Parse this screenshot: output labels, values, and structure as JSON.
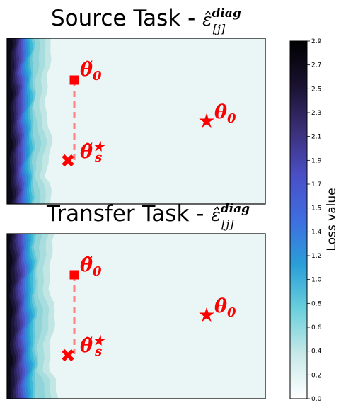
{
  "panels": [
    {
      "title_prefix": "Source Task - ",
      "title_symbol": "ε̂",
      "title_superscript": "diag",
      "title_subscript": "[j]",
      "markers": [
        {
          "symbol": "θ̃",
          "subscript": "0",
          "shape": "square"
        },
        {
          "symbol": "θ̃",
          "subscript": "s",
          "superscript": "★",
          "shape": "x"
        },
        {
          "symbol": "θ",
          "subscript": "0",
          "shape": "star"
        }
      ]
    },
    {
      "title_prefix": "Transfer Task - ",
      "title_symbol": "ε̂",
      "title_superscript": "diag",
      "title_subscript": "[j]",
      "markers": [
        {
          "symbol": "θ̃",
          "subscript": "0",
          "shape": "square"
        },
        {
          "symbol": "θ̃",
          "subscript": "s",
          "superscript": "★",
          "shape": "x"
        },
        {
          "symbol": "θ",
          "subscript": "0",
          "shape": "star"
        }
      ]
    }
  ],
  "colorbar": {
    "label": "Loss value",
    "min": 0.0,
    "max": 2.9,
    "ticks": [
      "0.0",
      "0.2",
      "0.4",
      "0.6",
      "0.8",
      "1.0",
      "1.2",
      "1.4",
      "1.5",
      "1.7",
      "1.9",
      "2.1",
      "2.3",
      "2.5",
      "2.7",
      "2.9"
    ],
    "colormap": [
      "#ffffff",
      "#c8e8e8",
      "#6ad0dc",
      "#2a9ed8",
      "#3f6ee0",
      "#4a4fc6",
      "#3b2f78",
      "#1a1230",
      "#000000"
    ]
  },
  "chart_data": [
    {
      "type": "heatmap",
      "title": "Source Task - ε̂^diag_[j]",
      "colorbar_label": "Loss value",
      "zlim": [
        0.0,
        2.9
      ],
      "grid": false,
      "axes_ticks": false,
      "contour_front_x": [
        0.175,
        0.19
      ],
      "points": [
        {
          "name": "θ̃_0",
          "marker": "square",
          "color": "#ff0000"
        },
        {
          "name": "θ̃_s★",
          "marker": "x",
          "color": "#ff0000"
        },
        {
          "name": "θ_0",
          "marker": "star",
          "color": "#ff0000"
        }
      ],
      "path": {
        "from": "θ̃_0",
        "to": "θ̃_s★",
        "style": "dashed",
        "color": "#ff8080"
      }
    },
    {
      "type": "heatmap",
      "title": "Transfer Task - ε̂^diag_[j]",
      "colorbar_label": "Loss value",
      "zlim": [
        0.0,
        2.9
      ],
      "grid": false,
      "axes_ticks": false,
      "contour_front_x": [
        0.18,
        0.2
      ],
      "points": [
        {
          "name": "θ̃_0",
          "marker": "square",
          "color": "#ff0000"
        },
        {
          "name": "θ̃_s★",
          "marker": "x",
          "color": "#ff0000"
        },
        {
          "name": "θ_0",
          "marker": "star",
          "color": "#ff0000"
        }
      ],
      "path": {
        "from": "θ̃_0",
        "to": "θ̃_s★",
        "style": "dashed",
        "color": "#ff8080"
      }
    }
  ]
}
